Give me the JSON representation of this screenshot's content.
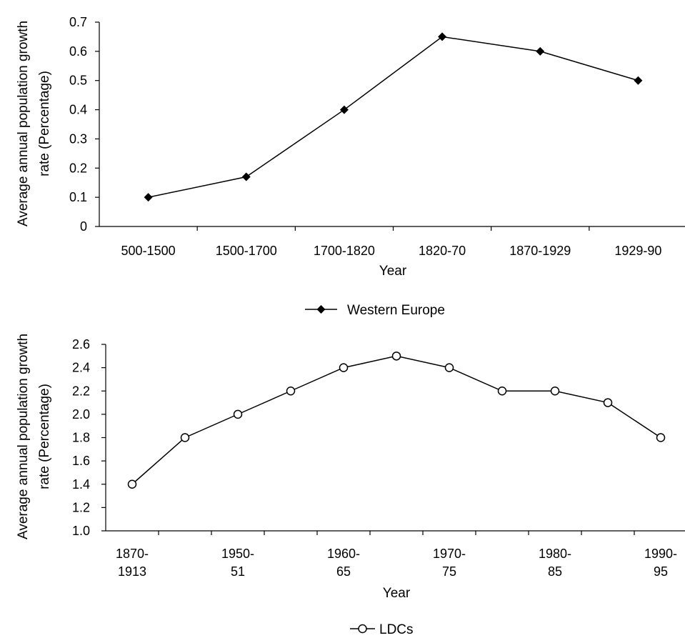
{
  "chart_data": [
    {
      "type": "line",
      "title": "",
      "xlabel": "Year",
      "ylabel_lines": [
        "Average annual population growth",
        "rate (Percentage)"
      ],
      "ylim": [
        0,
        0.7
      ],
      "yticks": [
        "0",
        "0.1",
        "0.2",
        "0.3",
        "0.4",
        "0.5",
        "0.6",
        "0.7"
      ],
      "categories": [
        "500-1500",
        "1500-1700",
        "1700-1820",
        "1820-70",
        "1870-1929",
        "1929-90"
      ],
      "series": [
        {
          "name": "Western Europe",
          "marker": "filled-diamond",
          "color": "#000000",
          "values": [
            0.1,
            0.17,
            0.4,
            0.65,
            0.6,
            0.5
          ]
        }
      ],
      "legend": {
        "placement": "bottom-center",
        "label": "Western Europe"
      }
    },
    {
      "type": "line",
      "title": "",
      "xlabel": "Year",
      "ylabel_lines": [
        "Average annual population growth",
        "rate (Percentage)"
      ],
      "ylim": [
        1.0,
        2.6
      ],
      "yticks": [
        "1.0",
        "1.2",
        "1.4",
        "1.6",
        "1.8",
        "2.0",
        "2.2",
        "2.4",
        "2.6"
      ],
      "categories": [
        "1870-1913",
        "",
        "1950-51",
        "",
        "1960-65",
        "",
        "1970-75",
        "",
        "1980-85",
        "",
        "1990-95"
      ],
      "tick_labels": [
        {
          "line1": "1870-",
          "line2": "1913"
        },
        {
          "line1": "1950-",
          "line2": "51"
        },
        {
          "line1": "1960-",
          "line2": "65"
        },
        {
          "line1": "1970-",
          "line2": "75"
        },
        {
          "line1": "1980-",
          "line2": "85"
        },
        {
          "line1": "1990-",
          "line2": "95"
        }
      ],
      "series": [
        {
          "name": "LDCs",
          "marker": "open-circle",
          "color": "#000000",
          "values": [
            1.4,
            1.8,
            2.0,
            2.2,
            2.4,
            2.5,
            2.4,
            2.2,
            2.2,
            2.1,
            1.8
          ]
        }
      ],
      "legend": {
        "placement": "bottom-center",
        "label": "LDCs"
      }
    }
  ]
}
